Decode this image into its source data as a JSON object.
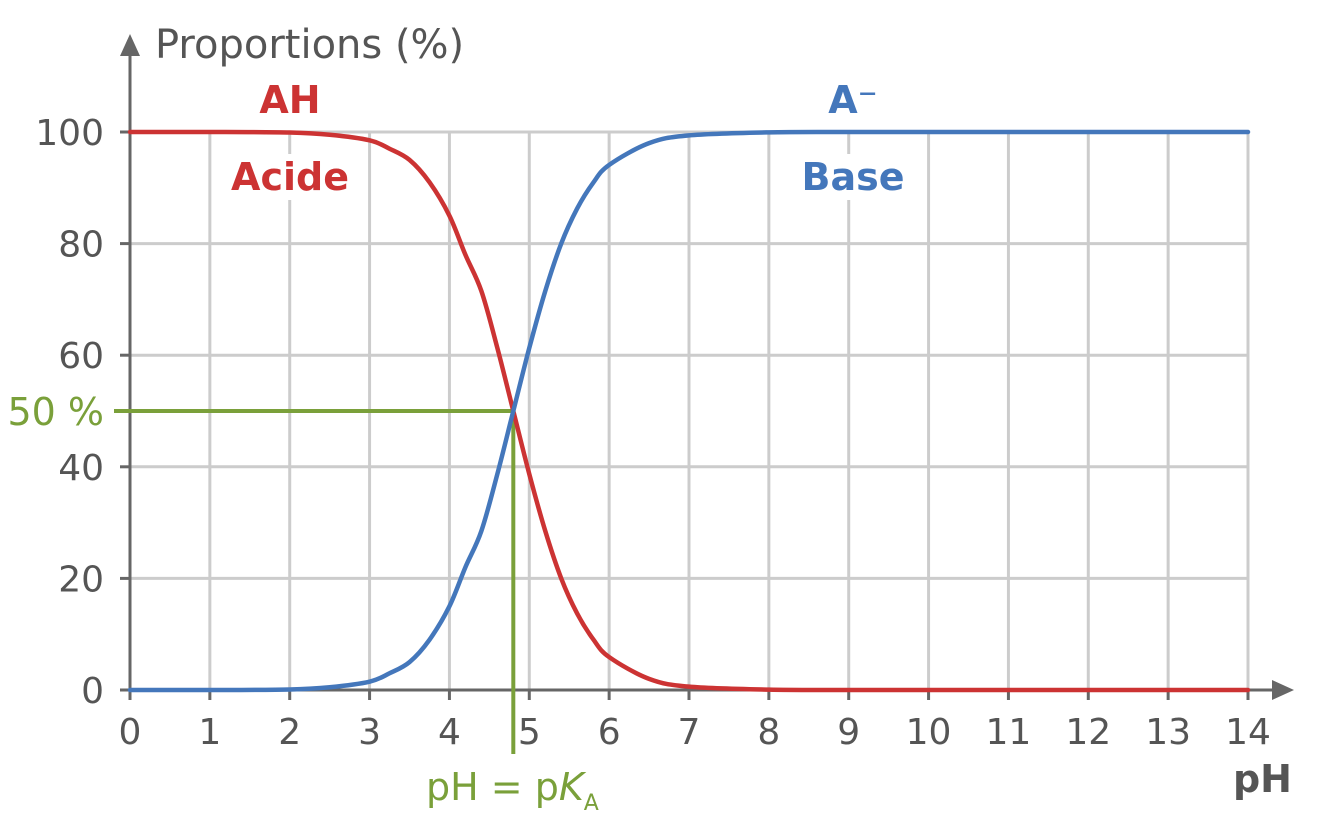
{
  "chart_data": {
    "type": "line",
    "ylabel": "Proportions (%)",
    "xlabel": "pH",
    "xlim": [
      0,
      14
    ],
    "ylim": [
      0,
      100
    ],
    "x_ticks": [
      "0",
      "1",
      "2",
      "3",
      "4",
      "5",
      "6",
      "7",
      "8",
      "9",
      "10",
      "11",
      "12",
      "13",
      "14"
    ],
    "y_ticks": [
      "0",
      "20",
      "40",
      "60",
      "80",
      "100"
    ],
    "grid": true,
    "pKa": 4.8,
    "series": [
      {
        "formula": "AH",
        "name": "Acide",
        "color": "#cc3333",
        "x": [
          0,
          1,
          2,
          2.5,
          3,
          3.25,
          3.5,
          3.75,
          4,
          4.2,
          4.4,
          4.6,
          4.8,
          5,
          5.2,
          5.4,
          5.6,
          5.8,
          6,
          6.5,
          7,
          8,
          9,
          10,
          11,
          12,
          13,
          14
        ],
        "values": [
          100,
          100,
          99.9,
          99.5,
          98.5,
          97,
          95,
          91,
          85,
          78,
          71.5,
          61.3,
          50,
          38.7,
          28.5,
          20,
          13.7,
          9.1,
          5.9,
          2.0,
          0.6,
          0.06,
          0,
          0,
          0,
          0,
          0,
          0
        ]
      },
      {
        "formula": "A⁻",
        "name": "Base",
        "color": "#4477bb",
        "x": [
          0,
          1,
          2,
          2.5,
          3,
          3.25,
          3.5,
          3.75,
          4,
          4.2,
          4.4,
          4.6,
          4.8,
          5,
          5.2,
          5.4,
          5.6,
          5.8,
          6,
          6.5,
          7,
          8,
          9,
          10,
          11,
          12,
          13,
          14
        ],
        "values": [
          0,
          0,
          0.1,
          0.5,
          1.5,
          3,
          5,
          9,
          15,
          22,
          28.5,
          38.7,
          50,
          61.3,
          71.5,
          80,
          86.3,
          90.9,
          94.1,
          98.0,
          99.4,
          99.94,
          100,
          100,
          100,
          100,
          100,
          100
        ]
      }
    ],
    "annotations": {
      "half_label": "50 %",
      "pka_label_prefix": "pH = p",
      "pka_label_italic": "K",
      "pka_label_sub": "A",
      "color": "#7aa03a"
    },
    "axis_color": "#666666",
    "grid_color": "#cccccc"
  }
}
